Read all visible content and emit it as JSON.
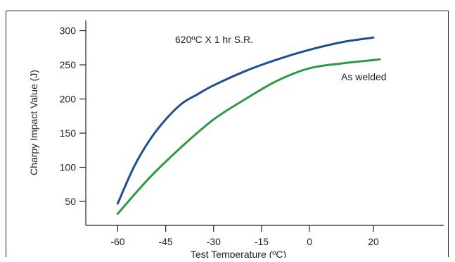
{
  "chart_data": {
    "type": "line",
    "title": "",
    "xlabel": "Test Temperature (ºC)",
    "ylabel": "Charpy Impact Value (J)",
    "xlim": [
      -70,
      42
    ],
    "ylim": [
      15,
      315
    ],
    "x_ticks": [
      -60,
      -45,
      -30,
      -15,
      0,
      20
    ],
    "y_ticks": [
      50,
      100,
      150,
      200,
      250,
      300
    ],
    "grid": false,
    "series": [
      {
        "name": "620ºC X 1 hr S.R.",
        "color": "#1f4e8c",
        "x": [
          -60,
          -55,
          -50,
          -45,
          -40,
          -35,
          -30,
          -20,
          -10,
          0,
          10,
          20
        ],
        "y": [
          47,
          100,
          140,
          170,
          193,
          207,
          220,
          241,
          258,
          272,
          283,
          290
        ]
      },
      {
        "name": "As welded",
        "color": "#2e9a47",
        "x": [
          -60,
          -50,
          -40,
          -30,
          -20,
          -10,
          0,
          10,
          20,
          22
        ],
        "y": [
          32,
          85,
          130,
          170,
          200,
          227,
          245,
          252,
          257,
          258
        ]
      }
    ]
  }
}
